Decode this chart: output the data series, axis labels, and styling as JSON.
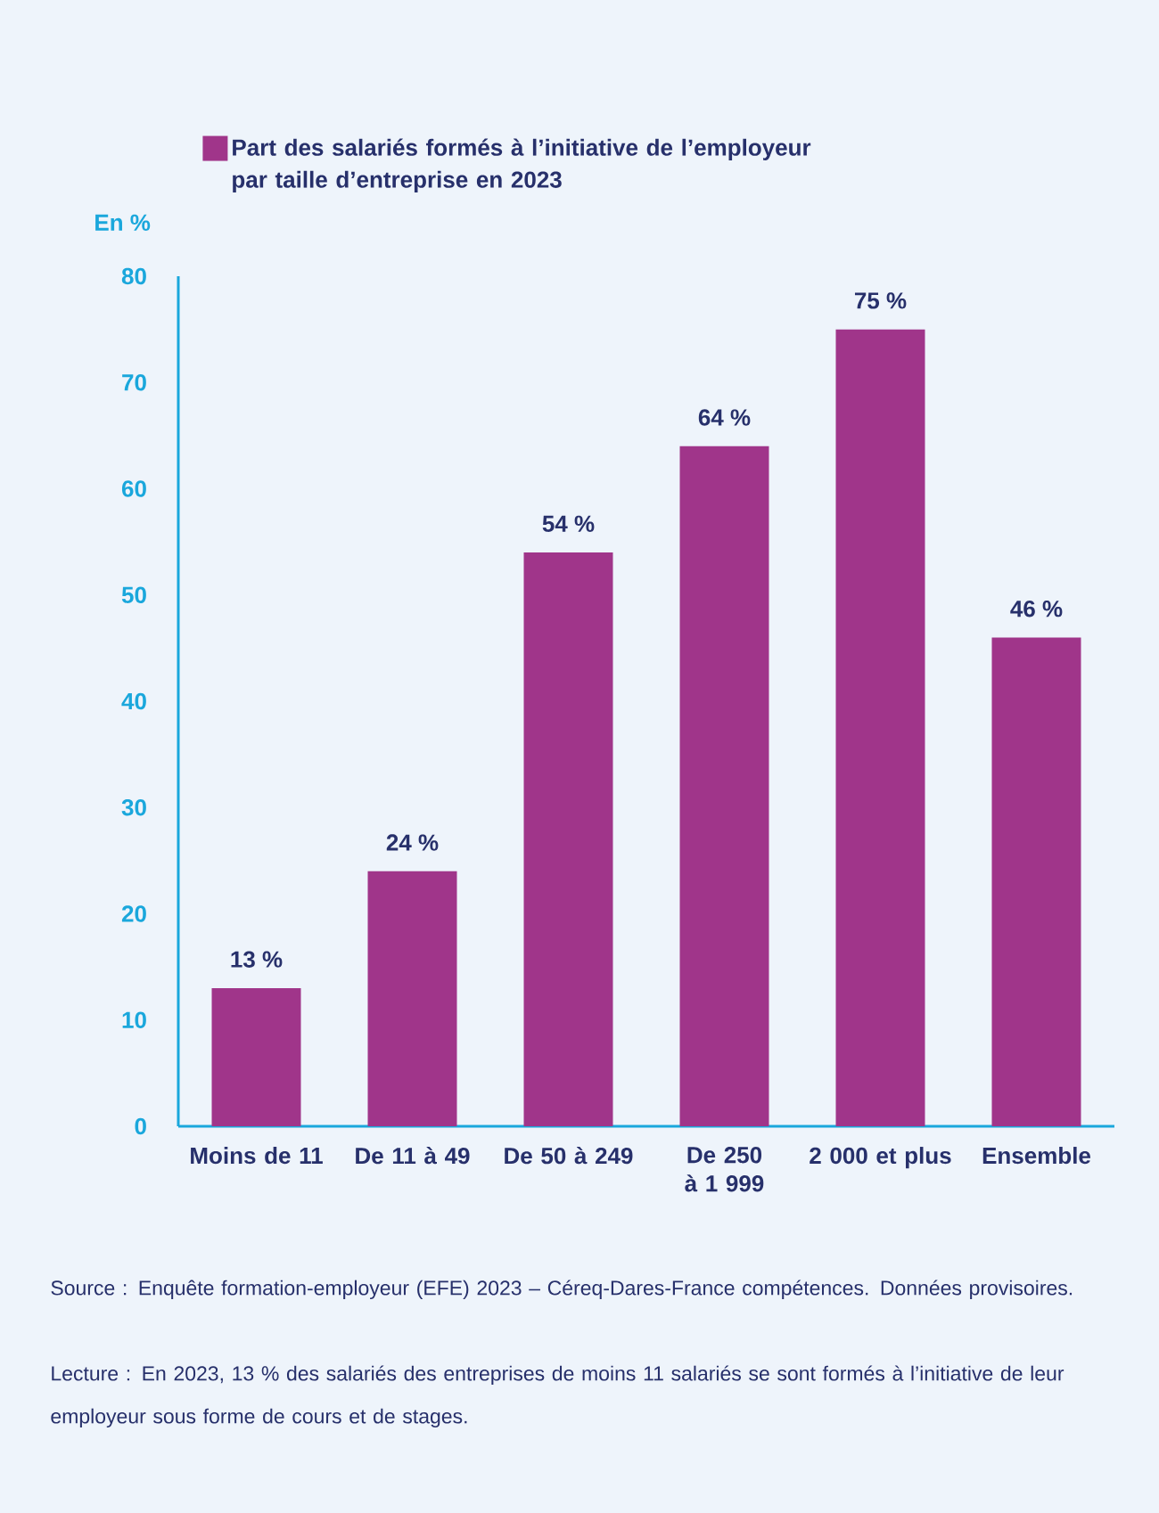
{
  "chart_data": {
    "type": "bar",
    "categories": [
      "Moins de 11",
      "De 11 à 49",
      "De 50 à 249",
      "De 250 à 1 999",
      "2 000 et plus",
      "Ensemble"
    ],
    "series": [
      {
        "name": "Part des salariés formés à l’initiative de l’employeur par taille d’entreprise en 2023",
        "color": "#a0358a",
        "values": [
          13,
          24,
          54,
          64,
          75,
          46
        ],
        "value_labels": [
          "13 %",
          "24 %",
          "54 %",
          "64 %",
          "75 %",
          "46 %"
        ]
      }
    ],
    "ylabel": "En %",
    "ylim": [
      0,
      80
    ],
    "yticks": [
      0,
      10,
      20,
      30,
      40,
      50,
      60,
      70,
      80
    ],
    "legend": "top left",
    "annotations": [
      "Source : Enquête formation-employeur (EFE) 2023 – Céreq-Dares-France compétences. Données provisoires.",
      "Lecture : En 2023, 13 % des salariés des entreprises de moins 11 salariés se sont formés à l’initiative de leur employeur sous forme de cours et de stages."
    ]
  }
}
